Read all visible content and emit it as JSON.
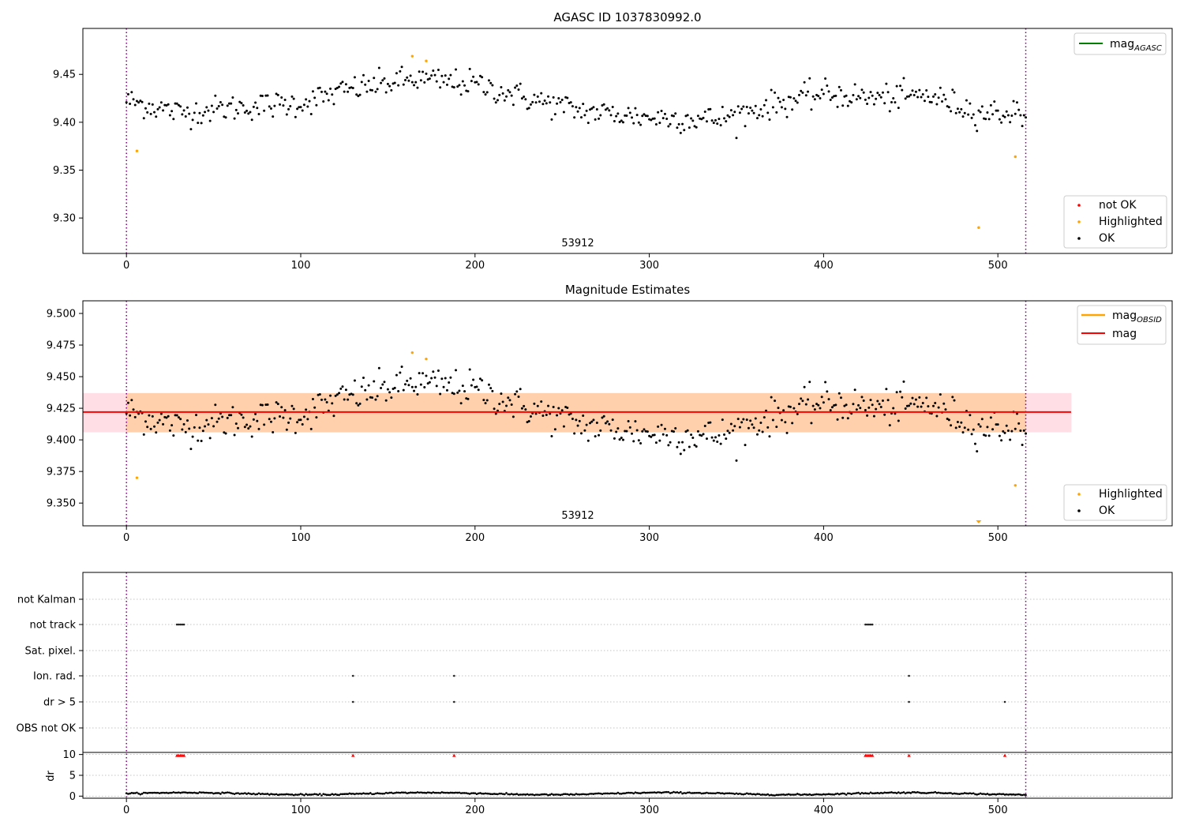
{
  "chart_data": [
    {
      "type": "scatter",
      "title": "AGASC ID 1037830992.0",
      "annotation": "53912",
      "xlim": [
        -25,
        600
      ],
      "ylim": [
        9.263,
        9.498
      ],
      "xticks": [
        "0",
        "100",
        "200",
        "300",
        "400",
        "500"
      ],
      "yticks": [
        "9.30",
        "9.35",
        "9.40",
        "9.45"
      ],
      "vlines_x": [
        0,
        516
      ],
      "legend_lines": [
        {
          "label": "mag",
          "subscript": "AGASC",
          "color": "#008000"
        }
      ],
      "legend_points": [
        {
          "label": "not OK",
          "color": "#ff0000"
        },
        {
          "label": "Highlighted",
          "color": "#ffa500"
        },
        {
          "label": "OK",
          "color": "#000000"
        }
      ],
      "highlighted_points": [
        [
          6,
          9.37
        ],
        [
          164,
          9.469
        ],
        [
          172,
          9.464
        ],
        [
          489,
          9.29
        ],
        [
          510,
          9.364
        ]
      ],
      "ok_series": {
        "x_range": [
          0,
          516
        ],
        "knots_x": [
          0,
          30,
          60,
          100,
          130,
          165,
          200,
          230,
          260,
          300,
          340,
          370,
          400,
          430,
          460,
          490,
          516
        ],
        "knots_y": [
          9.423,
          9.41,
          9.415,
          9.42,
          9.435,
          9.445,
          9.44,
          9.425,
          9.412,
          9.405,
          9.403,
          9.418,
          9.43,
          9.425,
          9.428,
          9.41,
          9.41
        ],
        "noise": 0.01
      }
    },
    {
      "type": "scatter",
      "title": "Magnitude Estimates",
      "annotation": "53912",
      "xlim": [
        -25,
        600
      ],
      "ylim": [
        9.332,
        9.51
      ],
      "xticks": [
        "0",
        "100",
        "200",
        "300",
        "400",
        "500"
      ],
      "yticks": [
        "9.350",
        "9.375",
        "9.400",
        "9.425",
        "9.450",
        "9.475",
        "9.500"
      ],
      "vlines_x": [
        0,
        516
      ],
      "mag_line": 9.422,
      "band_outer": [
        9.406,
        9.437
      ],
      "band_inner": [
        9.406,
        9.437
      ],
      "band_x_end": 542,
      "legend_lines": [
        {
          "label": "mag",
          "subscript": "OBSID",
          "color": "#ffa500"
        },
        {
          "label": "mag",
          "subscript": "",
          "color": "#ff0000"
        }
      ],
      "legend_points": [
        {
          "label": "Highlighted",
          "color": "#ffa500"
        },
        {
          "label": "OK",
          "color": "#000000"
        }
      ],
      "highlighted_points": [
        [
          6,
          9.37
        ],
        [
          164,
          9.469
        ],
        [
          172,
          9.464
        ],
        [
          510,
          9.364
        ]
      ],
      "highlighted_below": [
        489
      ]
    },
    {
      "type": "scatter",
      "title": "",
      "xlim": [
        -25,
        600
      ],
      "xticks": [
        "0",
        "100",
        "200",
        "300",
        "400",
        "500"
      ],
      "vlines_x": [
        0,
        516
      ],
      "flag_rows": [
        "not Kalman",
        "not track",
        "Sat. pixel.",
        "Ion. rad.",
        "dr > 5",
        "OBS not OK"
      ],
      "flags": {
        "not track": [
          29,
          30,
          31,
          32,
          33,
          424,
          425,
          426,
          427,
          428
        ],
        "Ion. rad.": [
          130,
          188,
          449
        ],
        "dr > 5": [
          130,
          188,
          449,
          504
        ]
      },
      "dr_panel": {
        "ylabel": "dr",
        "ylim": [
          -0.5,
          10.5
        ],
        "yticks": [
          "0",
          "5",
          "10"
        ],
        "red_points_x": [
          29,
          30,
          31,
          32,
          33,
          130,
          188,
          424,
          425,
          426,
          427,
          428,
          449,
          504
        ],
        "baseline": 0.6
      }
    }
  ]
}
